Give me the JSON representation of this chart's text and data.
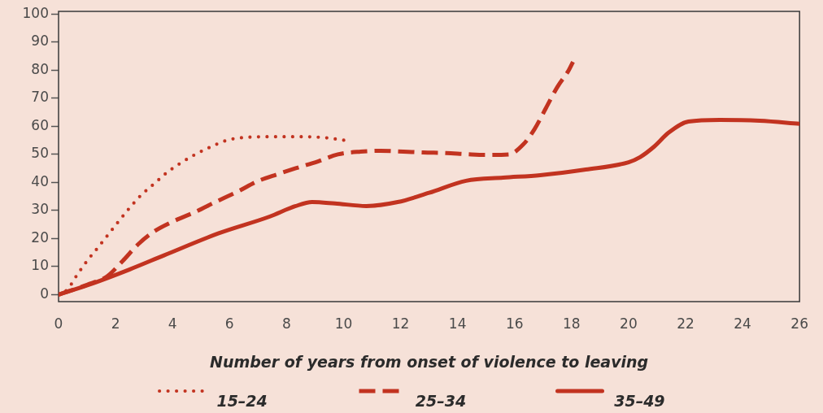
{
  "chart_data": {
    "type": "line",
    "xlabel": "Number of years from onset of violence to leaving",
    "xlim": [
      0,
      26
    ],
    "xticks": [
      0,
      2,
      4,
      6,
      8,
      10,
      12,
      14,
      16,
      18,
      20,
      22,
      24,
      26
    ],
    "ylim": [
      -2.5,
      101
    ],
    "yticks": [
      0,
      10,
      20,
      30,
      40,
      50,
      60,
      70,
      80,
      90,
      100
    ],
    "legend": "bottom",
    "series": [
      {
        "name": "15–24",
        "color": "#c23320",
        "line_style": "dotted",
        "x": [
          0,
          0.3,
          0.65,
          1,
          1.4,
          1.75,
          2.1,
          2.5,
          2.9,
          3.35,
          3.8,
          4.3,
          4.8,
          5.3,
          5.9,
          6.5,
          7.6,
          8.5,
          9.3,
          10.05
        ],
        "values": [
          0,
          1.7,
          7,
          12,
          17,
          21.5,
          26,
          31,
          35.5,
          39.5,
          43.5,
          47,
          50,
          52.5,
          55,
          56,
          56.3,
          56.3,
          56,
          55
        ]
      },
      {
        "name": "25–34",
        "color": "#c23320",
        "line_style": "dashed",
        "x": [
          0,
          1,
          1.7,
          2.25,
          2.8,
          3.35,
          4,
          4.8,
          5.5,
          6.3,
          7,
          7.7,
          8.3,
          9.1,
          9.8,
          10.6,
          11.3,
          12.1,
          12.8,
          13.6,
          14.3,
          15,
          15.8,
          16.3,
          16.7,
          17.1,
          17.5,
          17.9,
          18.05
        ],
        "values": [
          0,
          3.5,
          6.5,
          12,
          18,
          22.5,
          26,
          29.5,
          33,
          36.8,
          40.5,
          43,
          45,
          47.5,
          50,
          51,
          51.3,
          51,
          50.7,
          50.5,
          50.1,
          49.8,
          50,
          53.5,
          59,
          66.5,
          74,
          80,
          83
        ]
      },
      {
        "name": "35–49",
        "color": "#c23320",
        "line_style": "solid",
        "x": [
          0,
          1.2,
          2.5,
          3.7,
          5.6,
          7.4,
          8.3,
          8.9,
          9.7,
          10.8,
          11.9,
          13,
          14.3,
          15.6,
          16.9,
          18.5,
          20,
          20.4,
          20.9,
          21.4,
          22.1,
          23.2,
          24.6,
          26
        ],
        "values": [
          0,
          4,
          9,
          14,
          21.8,
          27.8,
          31.5,
          33,
          32.5,
          31.6,
          33,
          36.3,
          40.6,
          41.7,
          42.6,
          44.6,
          47.2,
          49,
          52.8,
          57.7,
          61.7,
          62.3,
          62,
          60.9
        ]
      }
    ]
  }
}
